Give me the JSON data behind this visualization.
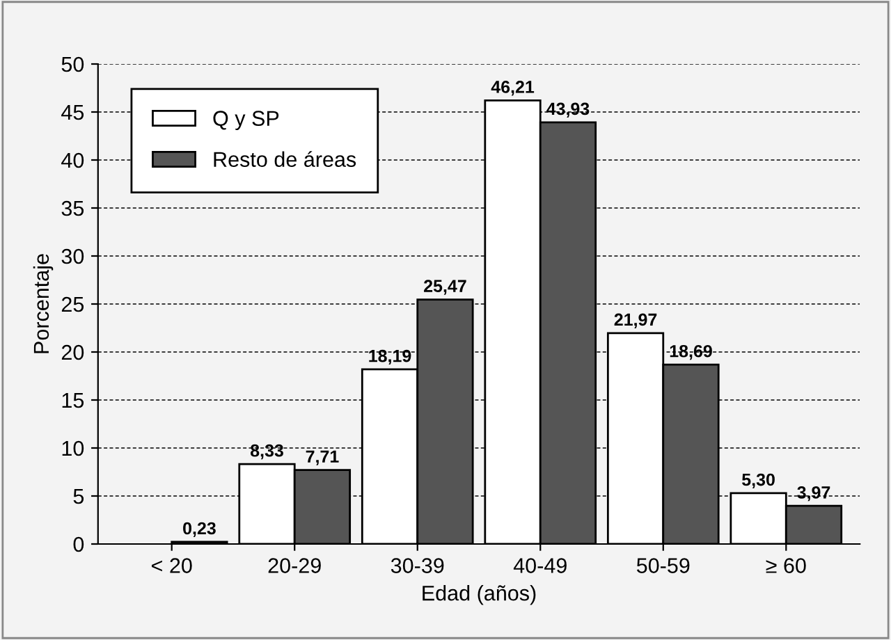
{
  "chart_data": {
    "type": "bar",
    "xlabel": "Edad (años)",
    "ylabel": "Porcentaje",
    "categories": [
      "< 20",
      "20-29",
      "30-39",
      "40-49",
      "50-59",
      "≥ 60"
    ],
    "series": [
      {
        "name": "Q y SP",
        "color": "#ffffff",
        "values": [
          null,
          8.33,
          18.19,
          46.21,
          21.97,
          5.3
        ],
        "value_labels": [
          null,
          "8,33",
          "18,19",
          "46,21",
          "21,97",
          "5,30"
        ]
      },
      {
        "name": "Resto de áreas",
        "color": "#555555",
        "values": [
          0.23,
          7.71,
          25.47,
          43.93,
          18.69,
          3.97
        ],
        "value_labels": [
          "0,23",
          "7,71",
          "25,47",
          "43,93",
          "18,69",
          "3,97"
        ]
      }
    ],
    "ylim": [
      0,
      50
    ],
    "yticks": [
      0,
      5,
      10,
      15,
      20,
      25,
      30,
      35,
      40,
      45,
      50
    ],
    "grid": "y",
    "legend": "top left"
  }
}
